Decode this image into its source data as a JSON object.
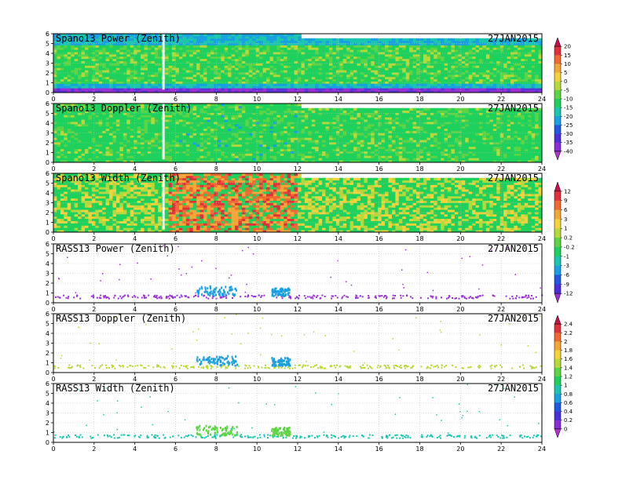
{
  "figure": {
    "date": "27JAN2015",
    "x_ticks": [
      "0",
      "2",
      "4",
      "6",
      "8",
      "10",
      "12",
      "14",
      "16",
      "18",
      "20",
      "22",
      "24"
    ],
    "y_ticks": [
      "0",
      "1",
      "2",
      "3",
      "4",
      "5",
      "6"
    ]
  },
  "chart_data": [
    {
      "type": "heatmap",
      "title": "Spano13 Power (Zenith)",
      "xlim": [
        0,
        24
      ],
      "ylim": [
        0,
        6
      ],
      "grid": true,
      "colorbar": "power"
    },
    {
      "type": "heatmap",
      "title": "Spano13 Doppler (Zenith)",
      "xlim": [
        0,
        24
      ],
      "ylim": [
        0,
        6
      ],
      "grid": true,
      "colorbar": "power"
    },
    {
      "type": "heatmap",
      "title": "Spano13 Width (Zenith)",
      "xlim": [
        0,
        24
      ],
      "ylim": [
        0,
        6
      ],
      "grid": true,
      "colorbar": "width"
    },
    {
      "type": "scatter",
      "title": "RASS13 Power (Zenith)",
      "xlim": [
        0,
        24
      ],
      "ylim": [
        0,
        6
      ],
      "grid": true,
      "colorbar": "width"
    },
    {
      "type": "scatter",
      "title": "RASS13 Doppler (Zenith)",
      "xlim": [
        0,
        24
      ],
      "ylim": [
        0,
        6
      ],
      "grid": true,
      "colorbar": "rass"
    },
    {
      "type": "scatter",
      "title": "RASS13 Width (Zenith)",
      "xlim": [
        0,
        24
      ],
      "ylim": [
        0,
        6
      ],
      "grid": true,
      "colorbar": "rass"
    }
  ],
  "colorbars": {
    "power": {
      "labels": [
        "20",
        "15",
        "10",
        "5",
        "0",
        "-5",
        "-10",
        "-15",
        "-20",
        "-25",
        "-30",
        "-35",
        "-40"
      ],
      "colors": [
        "#c8104a",
        "#e0303c",
        "#ee6a30",
        "#f4a636",
        "#f5d23c",
        "#b6d838",
        "#5cd444",
        "#1ed05c",
        "#1ac6b0",
        "#18a0e0",
        "#2058e0",
        "#4a30d8",
        "#8a2cd8",
        "#b034cc"
      ]
    },
    "width": {
      "labels": [
        "12",
        "9",
        "6",
        "3",
        "1",
        "0.2",
        "-0.2",
        "-1",
        "-3",
        "-6",
        "-9",
        "-12"
      ],
      "colors": [
        "#c8104a",
        "#e0303c",
        "#ee6a30",
        "#f4a636",
        "#f5d23c",
        "#b6d838",
        "#5cd444",
        "#1ed05c",
        "#1ac6b0",
        "#18a0e0",
        "#2058e0",
        "#4a30d8",
        "#9a30d4"
      ]
    },
    "rass": {
      "labels": [
        "2.4",
        "2.2",
        "2",
        "1.8",
        "1.6",
        "1.4",
        "1.2",
        "1",
        "0.8",
        "0.6",
        "0.4",
        "0.2",
        "0"
      ],
      "colors": [
        "#c8104a",
        "#e0303c",
        "#ee6a30",
        "#f4a636",
        "#f5d23c",
        "#b6d838",
        "#5cd444",
        "#1ed05c",
        "#1ac6b0",
        "#18a0e0",
        "#2058e0",
        "#4a30d8",
        "#8a2cd8",
        "#b034cc"
      ]
    }
  }
}
